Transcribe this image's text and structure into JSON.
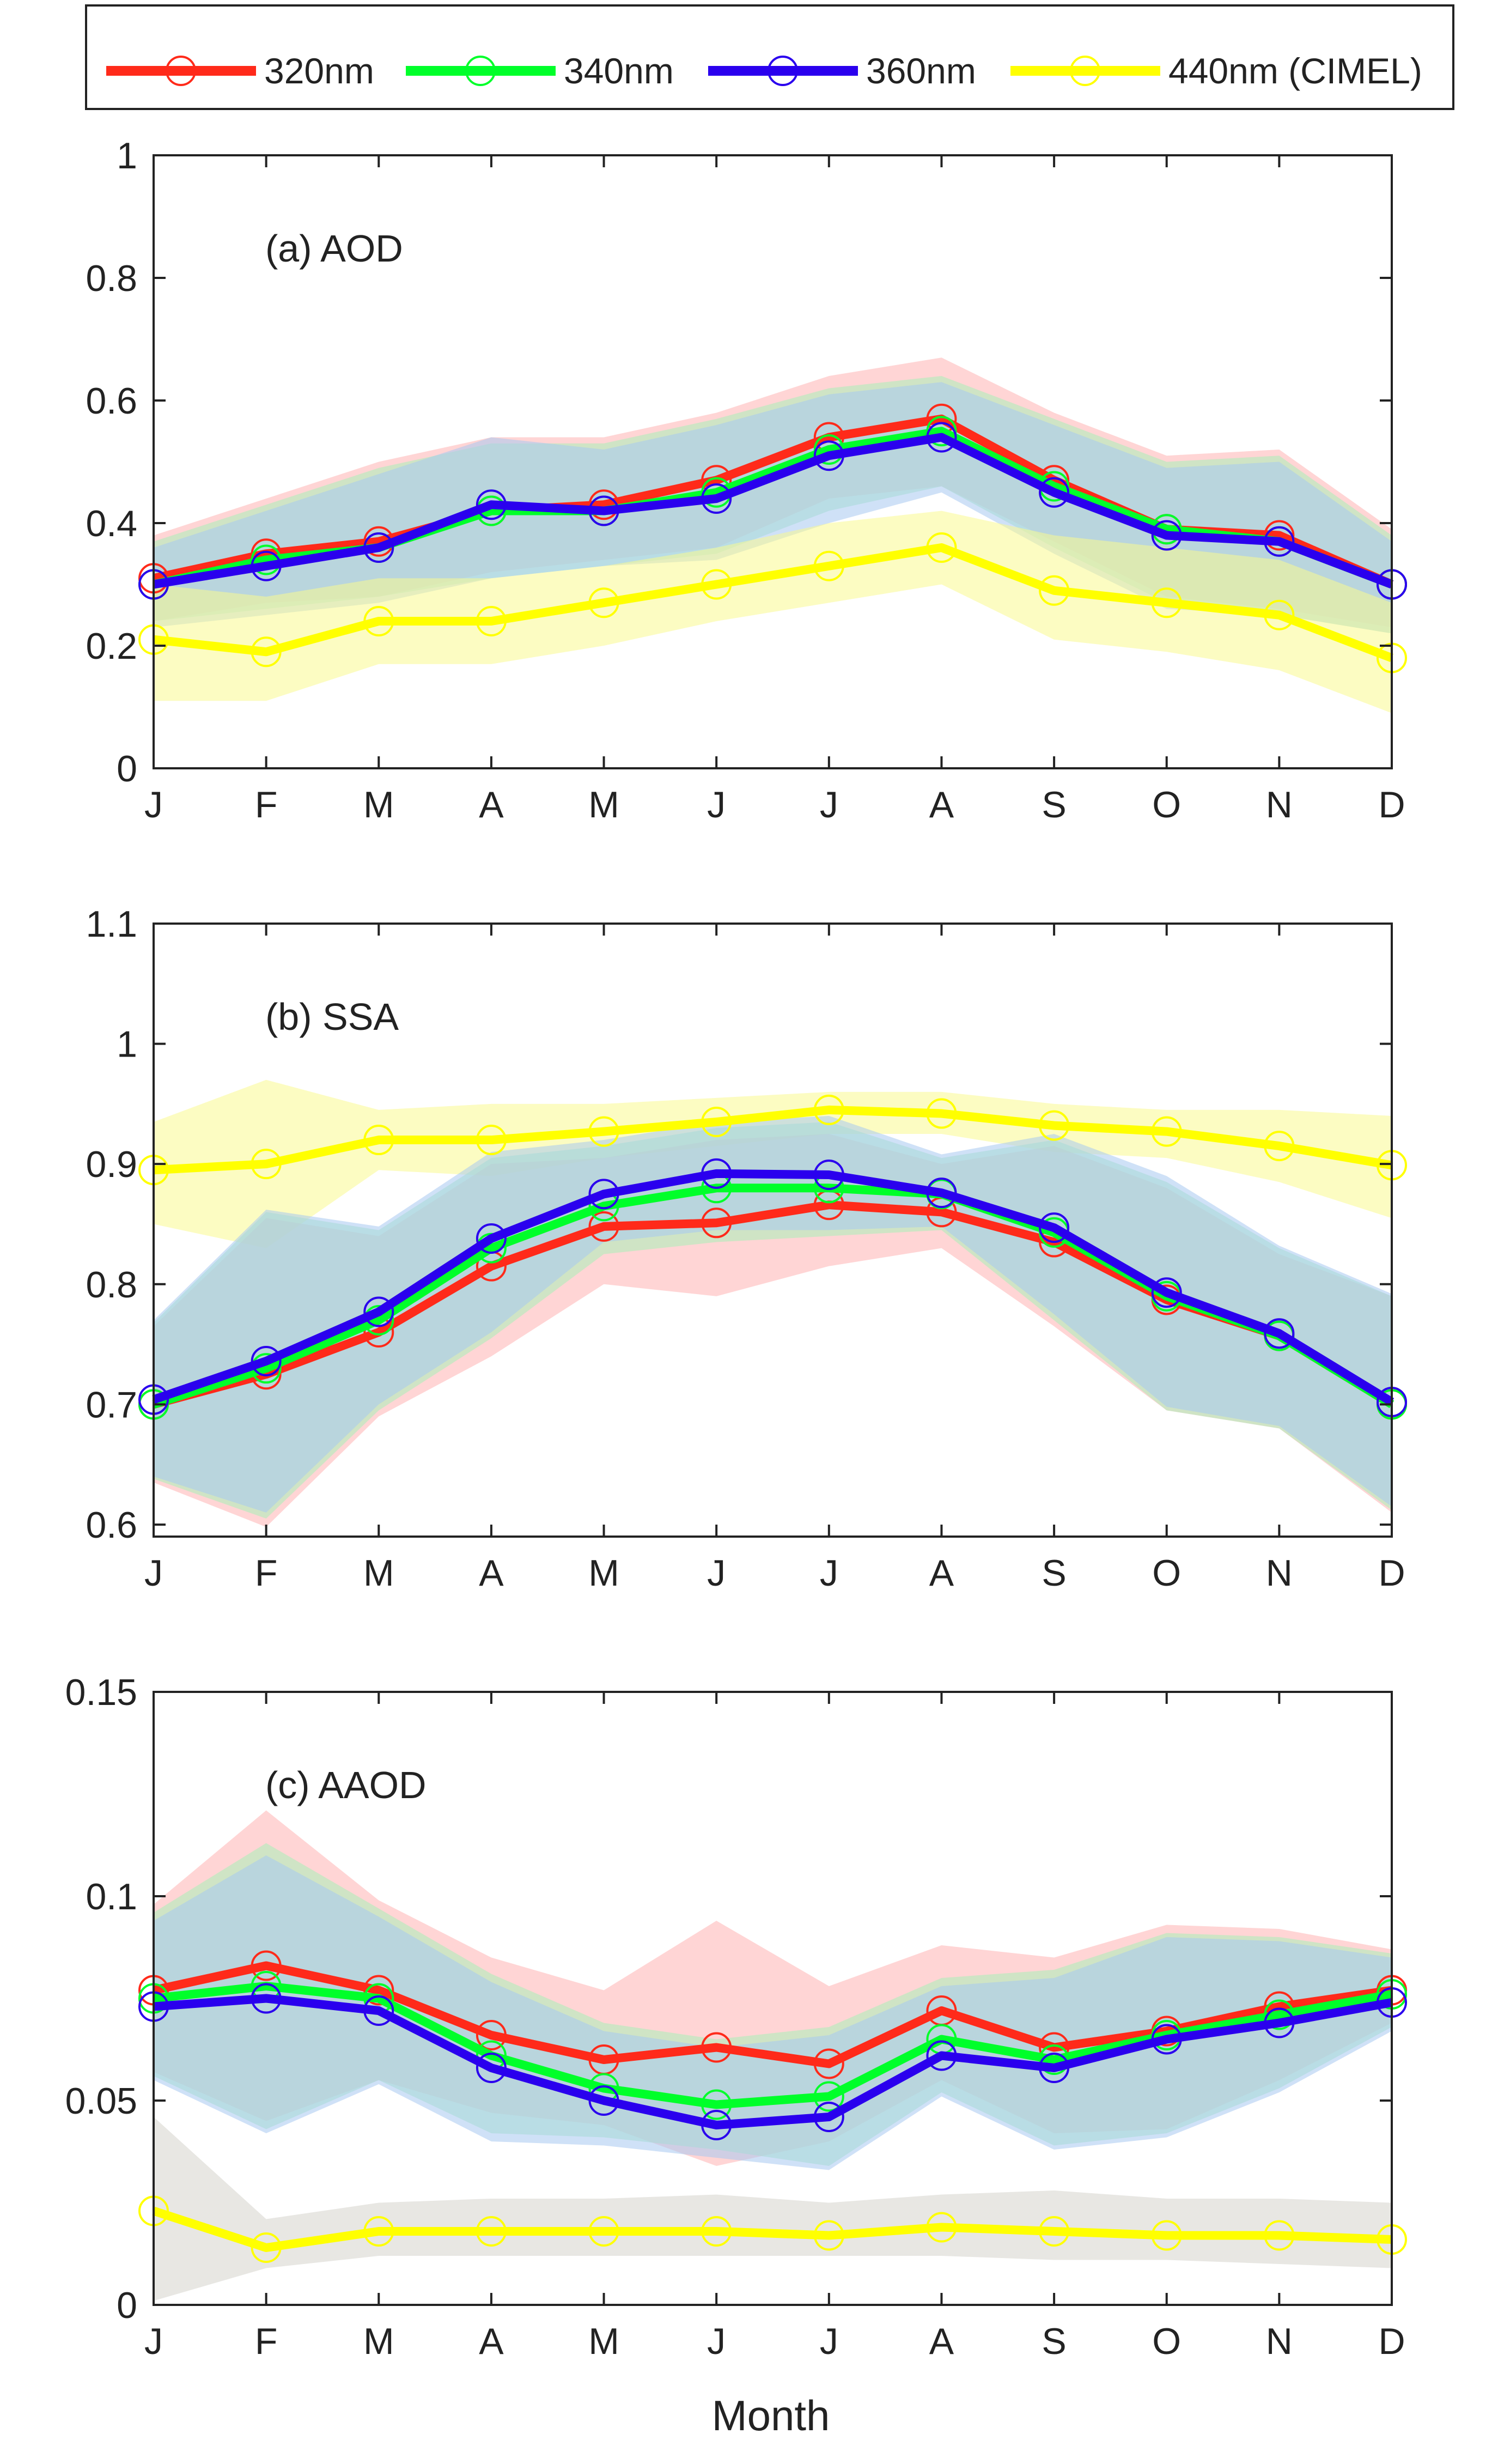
{
  "figure": {
    "xlabel": "Month",
    "legend": [
      {
        "label": "320nm",
        "color": "#ff2a1a"
      },
      {
        "label": "340nm",
        "color": "#00ff2a"
      },
      {
        "label": "360nm",
        "color": "#2a00ee"
      },
      {
        "label": "440nm (CIMEL)",
        "color": "#ffff00"
      }
    ]
  },
  "chart_data": [
    {
      "type": "line",
      "title": "(a) AOD",
      "xlabel": "",
      "ylabel": "",
      "categories": [
        "J",
        "F",
        "M",
        "A",
        "M",
        "J",
        "J",
        "A",
        "S",
        "O",
        "N",
        "D"
      ],
      "ylim": [
        0,
        1
      ],
      "yticks": [
        0,
        0.2,
        0.4,
        0.6,
        0.8,
        1
      ],
      "ytick_labels": [
        "0",
        "0.2",
        "0.4",
        "0.6",
        "0.8",
        "1"
      ],
      "series": [
        {
          "name": "320nm",
          "color": "#ff2a1a",
          "band_color": "#ffb3b3",
          "values": [
            0.31,
            0.35,
            0.37,
            0.42,
            0.43,
            0.47,
            0.54,
            0.57,
            0.47,
            0.39,
            0.38,
            0.3
          ],
          "lower": [
            0.24,
            0.27,
            0.28,
            0.32,
            0.34,
            0.36,
            0.44,
            0.46,
            0.37,
            0.28,
            0.26,
            0.23
          ],
          "upper": [
            0.38,
            0.44,
            0.5,
            0.54,
            0.54,
            0.58,
            0.64,
            0.67,
            0.58,
            0.51,
            0.52,
            0.39
          ]
        },
        {
          "name": "340nm",
          "color": "#00ff2a",
          "band_color": "#a8f0b8",
          "values": [
            0.3,
            0.34,
            0.36,
            0.42,
            0.42,
            0.45,
            0.52,
            0.55,
            0.46,
            0.39,
            0.37,
            0.3
          ],
          "lower": [
            0.24,
            0.26,
            0.28,
            0.31,
            0.33,
            0.35,
            0.42,
            0.46,
            0.36,
            0.27,
            0.25,
            0.22
          ],
          "upper": [
            0.37,
            0.43,
            0.49,
            0.53,
            0.53,
            0.57,
            0.62,
            0.64,
            0.57,
            0.5,
            0.51,
            0.38
          ]
        },
        {
          "name": "360nm",
          "color": "#2a00ee",
          "band_color": "#a8c8f0",
          "values": [
            0.3,
            0.33,
            0.36,
            0.43,
            0.42,
            0.44,
            0.51,
            0.54,
            0.45,
            0.38,
            0.37,
            0.3
          ],
          "lower": [
            0.23,
            0.25,
            0.27,
            0.31,
            0.33,
            0.34,
            0.4,
            0.45,
            0.35,
            0.26,
            0.25,
            0.22
          ],
          "upper": [
            0.36,
            0.42,
            0.48,
            0.54,
            0.52,
            0.56,
            0.61,
            0.63,
            0.56,
            0.49,
            0.5,
            0.37
          ]
        },
        {
          "name": "440nm (CIMEL)",
          "color": "#ffff00",
          "band_color": "#fafa90",
          "values": [
            0.21,
            0.19,
            0.24,
            0.24,
            0.27,
            0.3,
            0.33,
            0.36,
            0.29,
            0.27,
            0.25,
            0.18
          ],
          "lower": [
            0.11,
            0.11,
            0.17,
            0.17,
            0.2,
            0.24,
            0.27,
            0.3,
            0.21,
            0.19,
            0.16,
            0.09
          ],
          "upper": [
            0.3,
            0.28,
            0.31,
            0.31,
            0.33,
            0.36,
            0.4,
            0.42,
            0.38,
            0.36,
            0.34,
            0.27
          ]
        }
      ]
    },
    {
      "type": "line",
      "title": "(b) SSA",
      "xlabel": "",
      "ylabel": "",
      "categories": [
        "J",
        "F",
        "M",
        "A",
        "M",
        "J",
        "J",
        "A",
        "S",
        "O",
        "N",
        "D"
      ],
      "ylim": [
        0.59,
        1.1
      ],
      "yticks": [
        0.6,
        0.7,
        0.8,
        0.9,
        1,
        1.1
      ],
      "ytick_labels": [
        "0.6",
        "0.7",
        "0.8",
        "0.9",
        "1",
        "1.1"
      ],
      "series": [
        {
          "name": "440nm (CIMEL)",
          "color": "#ffff00",
          "band_color": "#fafa90",
          "values": [
            0.895,
            0.9,
            0.92,
            0.92,
            0.927,
            0.935,
            0.945,
            0.942,
            0.932,
            0.927,
            0.915,
            0.899
          ],
          "lower": [
            0.85,
            0.83,
            0.895,
            0.89,
            0.905,
            0.915,
            0.925,
            0.925,
            0.91,
            0.905,
            0.885,
            0.855
          ],
          "upper": [
            0.935,
            0.97,
            0.945,
            0.95,
            0.95,
            0.955,
            0.96,
            0.96,
            0.95,
            0.945,
            0.945,
            0.94
          ]
        },
        {
          "name": "320nm",
          "color": "#ff2a1a",
          "band_color": "#ffb3b3",
          "values": [
            0.7,
            0.725,
            0.76,
            0.815,
            0.848,
            0.851,
            0.866,
            0.86,
            0.835,
            0.787,
            0.757,
            0.7
          ],
          "lower": [
            0.635,
            0.598,
            0.69,
            0.74,
            0.8,
            0.79,
            0.815,
            0.83,
            0.765,
            0.695,
            0.68,
            0.61
          ],
          "upper": [
            0.765,
            0.855,
            0.84,
            0.9,
            0.905,
            0.92,
            0.925,
            0.9,
            0.915,
            0.88,
            0.825,
            0.79
          ]
        },
        {
          "name": "340nm",
          "color": "#00ff2a",
          "band_color": "#a8f0b8",
          "values": [
            0.7,
            0.73,
            0.77,
            0.83,
            0.865,
            0.88,
            0.88,
            0.875,
            0.843,
            0.79,
            0.757,
            0.7
          ],
          "lower": [
            0.638,
            0.605,
            0.695,
            0.755,
            0.825,
            0.835,
            0.84,
            0.845,
            0.77,
            0.695,
            0.68,
            0.612
          ],
          "upper": [
            0.768,
            0.86,
            0.845,
            0.905,
            0.915,
            0.93,
            0.935,
            0.905,
            0.92,
            0.885,
            0.83,
            0.79
          ]
        },
        {
          "name": "360nm",
          "color": "#2a00ee",
          "band_color": "#a8c8f0",
          "values": [
            0.704,
            0.736,
            0.777,
            0.838,
            0.875,
            0.892,
            0.891,
            0.876,
            0.847,
            0.793,
            0.759,
            0.702
          ],
          "lower": [
            0.64,
            0.61,
            0.7,
            0.76,
            0.835,
            0.845,
            0.845,
            0.848,
            0.775,
            0.698,
            0.682,
            0.615
          ],
          "upper": [
            0.77,
            0.862,
            0.848,
            0.91,
            0.92,
            0.935,
            0.94,
            0.908,
            0.925,
            0.89,
            0.832,
            0.792
          ]
        }
      ]
    },
    {
      "type": "line",
      "title": "(c) AAOD",
      "xlabel": "Month",
      "ylabel": "",
      "categories": [
        "J",
        "F",
        "M",
        "A",
        "M",
        "J",
        "J",
        "A",
        "S",
        "O",
        "N",
        "D"
      ],
      "ylim": [
        0,
        0.15
      ],
      "yticks": [
        0,
        0.05,
        0.1,
        0.15
      ],
      "ytick_labels": [
        "0",
        "0.05",
        "0.1",
        "0.15"
      ],
      "series": [
        {
          "name": "440nm (CIMEL)",
          "color": "#ffff00",
          "band_color": "#d6d4cc",
          "values": [
            0.023,
            0.014,
            0.018,
            0.018,
            0.018,
            0.018,
            0.017,
            0.019,
            0.018,
            0.017,
            0.017,
            0.016
          ],
          "lower": [
            0.001,
            0.009,
            0.012,
            0.012,
            0.012,
            0.012,
            0.012,
            0.012,
            0.011,
            0.011,
            0.01,
            0.009
          ],
          "upper": [
            0.046,
            0.021,
            0.025,
            0.026,
            0.026,
            0.027,
            0.025,
            0.027,
            0.028,
            0.026,
            0.026,
            0.025
          ]
        },
        {
          "name": "320nm",
          "color": "#ff2a1a",
          "band_color": "#ffb3b3",
          "values": [
            0.077,
            0.083,
            0.077,
            0.066,
            0.06,
            0.063,
            0.059,
            0.072,
            0.063,
            0.067,
            0.073,
            0.077
          ],
          "lower": [
            0.057,
            0.045,
            0.055,
            0.047,
            0.044,
            0.034,
            0.04,
            0.055,
            0.042,
            0.043,
            0.055,
            0.069
          ],
          "upper": [
            0.098,
            0.121,
            0.099,
            0.085,
            0.077,
            0.094,
            0.078,
            0.088,
            0.085,
            0.093,
            0.092,
            0.087
          ]
        },
        {
          "name": "340nm",
          "color": "#00ff2a",
          "band_color": "#a8f0b8",
          "values": [
            0.075,
            0.078,
            0.075,
            0.061,
            0.053,
            0.049,
            0.051,
            0.065,
            0.06,
            0.066,
            0.071,
            0.076
          ],
          "lower": [
            0.056,
            0.043,
            0.055,
            0.042,
            0.041,
            0.038,
            0.034,
            0.052,
            0.039,
            0.042,
            0.053,
            0.068
          ],
          "upper": [
            0.096,
            0.113,
            0.097,
            0.081,
            0.069,
            0.065,
            0.068,
            0.08,
            0.082,
            0.091,
            0.09,
            0.086
          ]
        },
        {
          "name": "360nm",
          "color": "#2a00ee",
          "band_color": "#a8c8f0",
          "values": [
            0.073,
            0.075,
            0.072,
            0.058,
            0.05,
            0.044,
            0.046,
            0.061,
            0.058,
            0.065,
            0.069,
            0.074
          ],
          "lower": [
            0.055,
            0.042,
            0.054,
            0.04,
            0.039,
            0.036,
            0.033,
            0.051,
            0.038,
            0.041,
            0.052,
            0.067
          ],
          "upper": [
            0.094,
            0.11,
            0.095,
            0.079,
            0.067,
            0.063,
            0.066,
            0.078,
            0.08,
            0.09,
            0.089,
            0.085
          ]
        }
      ]
    }
  ]
}
